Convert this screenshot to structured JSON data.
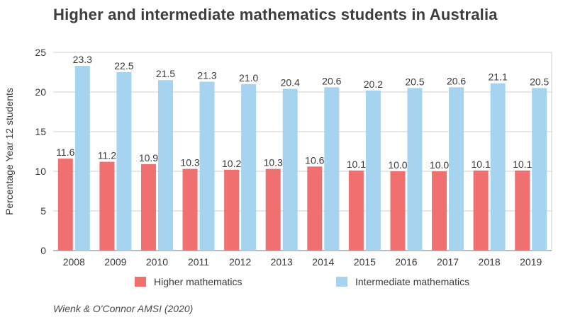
{
  "title": "Higher and intermediate mathematics students in Australia",
  "source": "Wienk & O'Connor AMSI (2020)",
  "chart_data": {
    "type": "bar",
    "title": "Higher and intermediate mathematics students in Australia",
    "xlabel": "",
    "ylabel": "Percentage Year 12 students",
    "ylim": [
      0,
      25
    ],
    "yticks": [
      0,
      5,
      10,
      15,
      20,
      25
    ],
    "grid": true,
    "legend_position": "bottom",
    "categories": [
      "2008",
      "2009",
      "2010",
      "2011",
      "2012",
      "2013",
      "2014",
      "2015",
      "2016",
      "2017",
      "2018",
      "2019"
    ],
    "series": [
      {
        "name": "Higher mathematics",
        "color": "#f07070",
        "values": [
          11.6,
          11.2,
          10.9,
          10.3,
          10.2,
          10.3,
          10.6,
          10.1,
          10.0,
          10.0,
          10.1,
          10.1
        ],
        "labels": [
          "11.6",
          "11.2",
          "10.9",
          "10.3",
          "10.2",
          "10.3",
          "10.6",
          "10.1",
          "10.0",
          "10.0",
          "10.1",
          "10.1"
        ]
      },
      {
        "name": "Intermediate mathematics",
        "color": "#a6d3ef",
        "values": [
          23.3,
          22.5,
          21.5,
          21.3,
          21.0,
          20.4,
          20.6,
          20.2,
          20.5,
          20.6,
          21.1,
          20.5
        ],
        "labels": [
          "23.3",
          "22.5",
          "21.5",
          "21.3",
          "21.0",
          "20.4",
          "20.6",
          "20.2",
          "20.5",
          "20.6",
          "21.1",
          "20.5"
        ]
      }
    ]
  }
}
